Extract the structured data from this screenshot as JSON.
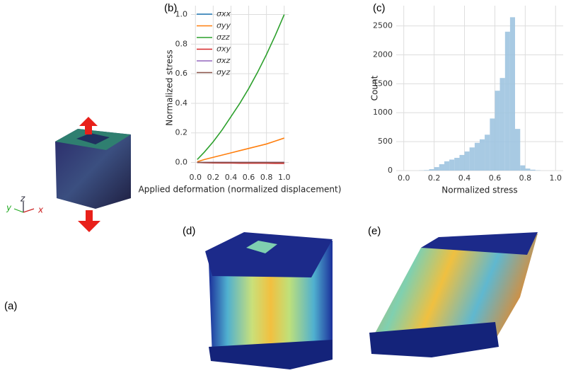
{
  "panel_labels": [
    "(a)",
    "(b)",
    "(c)",
    "(d)",
    "(e)"
  ],
  "axis_labels": [
    "x",
    "y",
    "z"
  ],
  "chart_data": [
    {
      "type": "line",
      "xlabel": "Applied deformation (normalized displacement)",
      "ylabel": "Normalized stress",
      "x": [
        0.02,
        0.1,
        0.2,
        0.3,
        0.4,
        0.5,
        0.6,
        0.7,
        0.8,
        0.9,
        1.0
      ],
      "series": [
        {
          "name": "σxx",
          "color": "#1f77b4",
          "values": [
            0,
            0,
            0,
            0,
            0,
            0,
            0,
            0,
            0,
            0,
            0
          ]
        },
        {
          "name": "σyy",
          "color": "#ff7f0e",
          "values": [
            0.005,
            0.02,
            0.035,
            0.05,
            0.065,
            0.08,
            0.095,
            0.11,
            0.125,
            0.145,
            0.165
          ]
        },
        {
          "name": "σzz",
          "color": "#2ca02c",
          "values": [
            0.02,
            0.07,
            0.14,
            0.22,
            0.31,
            0.4,
            0.5,
            0.61,
            0.73,
            0.86,
            1.0
          ]
        },
        {
          "name": "σxy",
          "color": "#d62728",
          "values": [
            0,
            -0.002,
            -0.003,
            -0.004,
            -0.004,
            -0.005,
            -0.005,
            -0.005,
            -0.005,
            -0.006,
            -0.006
          ]
        },
        {
          "name": "σxz",
          "color": "#9467bd",
          "values": [
            0,
            0,
            0.001,
            0.001,
            0.001,
            0.001,
            0.001,
            0.001,
            0.001,
            0.001,
            0.001
          ]
        },
        {
          "name": "σyz",
          "color": "#8c564b",
          "values": [
            0,
            0,
            0,
            0,
            0,
            0,
            0,
            0,
            0,
            0,
            0
          ]
        }
      ],
      "xlim": [
        -0.05,
        1.05
      ],
      "xticks": [
        {
          "value": 0,
          "label": "0.0"
        },
        0.2,
        0.4,
        0.6,
        0.8,
        {
          "value": 1,
          "label": "1.0"
        }
      ],
      "ylim": [
        -0.05,
        1.06
      ],
      "yticks": [
        {
          "value": 0,
          "label": "0.0"
        },
        0.2,
        0.4,
        0.6,
        0.8,
        {
          "value": 1,
          "label": "1.0"
        }
      ],
      "grid": true
    },
    {
      "type": "histogram",
      "xlabel": "Normalized stress",
      "ylabel": "Count",
      "color": "#9ec4e0",
      "bins": [
        0.1,
        0.133,
        0.167,
        0.2,
        0.233,
        0.267,
        0.3,
        0.333,
        0.367,
        0.4,
        0.433,
        0.467,
        0.5,
        0.533,
        0.567,
        0.6,
        0.633,
        0.667,
        0.7,
        0.733,
        0.767,
        0.8,
        0.833,
        0.867,
        0.9
      ],
      "counts": [
        3,
        8,
        25,
        60,
        110,
        160,
        190,
        220,
        270,
        330,
        400,
        480,
        540,
        620,
        900,
        1380,
        1600,
        2400,
        2650,
        720,
        90,
        35,
        15,
        5
      ],
      "xlim": [
        -0.05,
        1.05
      ],
      "xticks": [
        {
          "value": 0,
          "label": "0.0"
        },
        0.2,
        0.4,
        0.6,
        0.8,
        {
          "value": 1,
          "label": "1.0"
        }
      ],
      "ylim": [
        0,
        2850
      ],
      "yticks": [
        0,
        500,
        1000,
        1500,
        2000,
        2500
      ],
      "grid": true
    }
  ]
}
